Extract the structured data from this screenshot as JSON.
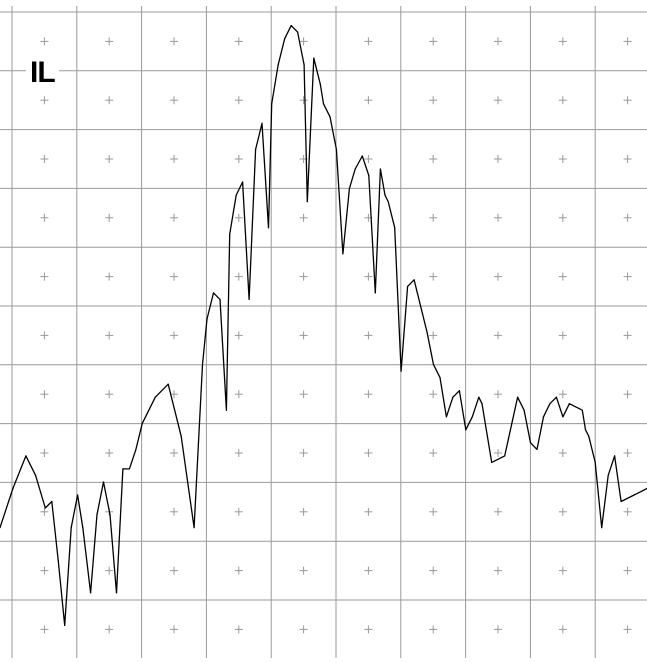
{
  "chart_data": {
    "type": "line",
    "label": "IL",
    "xlim": [
      0,
      1
    ],
    "ylim": [
      0,
      1
    ],
    "grid": {
      "x_divisions": 10,
      "y_divisions": 11
    },
    "colors": {
      "trace": "#000000",
      "grid": "#999999",
      "background": "#ffffff"
    },
    "series": [
      {
        "x": [
          0.0,
          0.02,
          0.04,
          0.055,
          0.07,
          0.08,
          0.09,
          0.1,
          0.11,
          0.12,
          0.128,
          0.14,
          0.15,
          0.16,
          0.17,
          0.18,
          0.19,
          0.2,
          0.21,
          0.22,
          0.24,
          0.26,
          0.28,
          0.3,
          0.313,
          0.32,
          0.33,
          0.34,
          0.35,
          0.355,
          0.365,
          0.375,
          0.385,
          0.395,
          0.405,
          0.415,
          0.42,
          0.43,
          0.44,
          0.45,
          0.46,
          0.47,
          0.475,
          0.485,
          0.495,
          0.5,
          0.51,
          0.52,
          0.53,
          0.54,
          0.549,
          0.56,
          0.57,
          0.58,
          0.588,
          0.595,
          0.6,
          0.61,
          0.62,
          0.63,
          0.64,
          0.66,
          0.67,
          0.68,
          0.69,
          0.7,
          0.71,
          0.72,
          0.73,
          0.74,
          0.745,
          0.76,
          0.78,
          0.8,
          0.81,
          0.82,
          0.83,
          0.84,
          0.85,
          0.86,
          0.87,
          0.88,
          0.9,
          0.905,
          0.91,
          0.92,
          0.93,
          0.94,
          0.95,
          0.96,
          0.98,
          1.0
        ],
        "y": [
          0.2,
          0.26,
          0.31,
          0.28,
          0.23,
          0.24,
          0.15,
          0.05,
          0.2,
          0.25,
          0.2,
          0.1,
          0.22,
          0.27,
          0.22,
          0.1,
          0.29,
          0.29,
          0.32,
          0.36,
          0.4,
          0.42,
          0.34,
          0.2,
          0.45,
          0.52,
          0.56,
          0.55,
          0.38,
          0.65,
          0.71,
          0.73,
          0.55,
          0.78,
          0.82,
          0.66,
          0.85,
          0.91,
          0.95,
          0.97,
          0.96,
          0.91,
          0.7,
          0.92,
          0.88,
          0.85,
          0.83,
          0.78,
          0.62,
          0.72,
          0.75,
          0.77,
          0.74,
          0.56,
          0.75,
          0.71,
          0.7,
          0.66,
          0.44,
          0.57,
          0.58,
          0.5,
          0.45,
          0.43,
          0.37,
          0.4,
          0.41,
          0.35,
          0.37,
          0.4,
          0.39,
          0.3,
          0.31,
          0.4,
          0.38,
          0.33,
          0.32,
          0.37,
          0.39,
          0.4,
          0.37,
          0.39,
          0.38,
          0.35,
          0.34,
          0.3,
          0.2,
          0.28,
          0.31,
          0.24,
          0.25,
          0.26
        ]
      }
    ]
  }
}
